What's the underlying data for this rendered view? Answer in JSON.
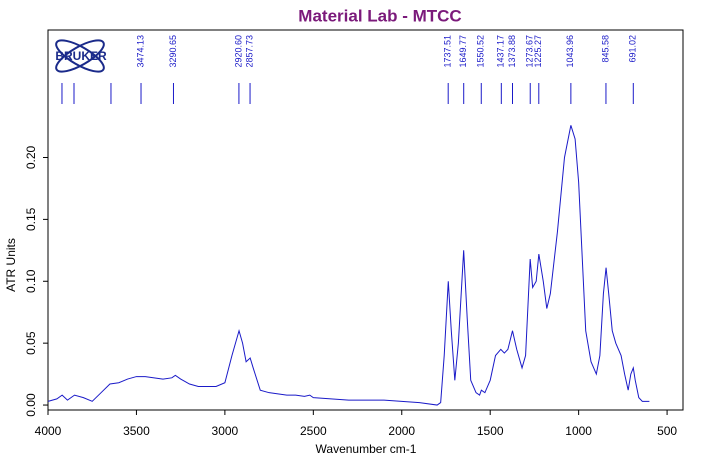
{
  "chart_data": {
    "type": "line",
    "title": "Material Lab - MTCC",
    "x_label": "Wavenumber cm-1",
    "y_label": "ATR Units",
    "logo": "BRUKER",
    "x": [
      4000,
      3950,
      3920,
      3890,
      3850,
      3800,
      3750,
      3700,
      3650,
      3600,
      3550,
      3500,
      3450,
      3400,
      3350,
      3300,
      3280,
      3250,
      3200,
      3150,
      3100,
      3050,
      3000,
      2960,
      2920,
      2900,
      2880,
      2857,
      2840,
      2800,
      2750,
      2700,
      2650,
      2600,
      2550,
      2520,
      2500,
      2400,
      2300,
      2200,
      2100,
      2000,
      1900,
      1800,
      1780,
      1760,
      1737,
      1720,
      1700,
      1680,
      1650,
      1630,
      1610,
      1580,
      1560,
      1550,
      1530,
      1500,
      1470,
      1440,
      1420,
      1400,
      1374,
      1350,
      1320,
      1300,
      1274,
      1260,
      1240,
      1225,
      1200,
      1180,
      1160,
      1120,
      1080,
      1044,
      1020,
      1000,
      980,
      960,
      930,
      900,
      880,
      860,
      845,
      830,
      810,
      790,
      760,
      740,
      720,
      705,
      691,
      680,
      660,
      640,
      600
    ],
    "series": [
      {
        "name": "spectrum",
        "color": "#1a1ac8",
        "values": [
          0.003,
          0.005,
          0.008,
          0.004,
          0.008,
          0.006,
          0.003,
          0.01,
          0.017,
          0.018,
          0.021,
          0.023,
          0.023,
          0.022,
          0.021,
          0.022,
          0.024,
          0.021,
          0.017,
          0.015,
          0.015,
          0.015,
          0.018,
          0.04,
          0.06,
          0.05,
          0.035,
          0.038,
          0.03,
          0.012,
          0.01,
          0.009,
          0.008,
          0.008,
          0.007,
          0.008,
          0.006,
          0.005,
          0.004,
          0.004,
          0.004,
          0.003,
          0.002,
          0.0,
          0.002,
          0.04,
          0.1,
          0.06,
          0.02,
          0.05,
          0.125,
          0.07,
          0.02,
          0.01,
          0.008,
          0.012,
          0.01,
          0.02,
          0.04,
          0.045,
          0.042,
          0.045,
          0.06,
          0.045,
          0.03,
          0.04,
          0.118,
          0.095,
          0.1,
          0.122,
          0.1,
          0.078,
          0.09,
          0.14,
          0.2,
          0.226,
          0.215,
          0.18,
          0.12,
          0.06,
          0.035,
          0.025,
          0.04,
          0.09,
          0.111,
          0.09,
          0.06,
          0.05,
          0.04,
          0.025,
          0.012,
          0.025,
          0.03,
          0.02,
          0.006,
          0.003,
          0.003
        ]
      }
    ],
    "peaks": [
      3921,
      3853,
      3644,
      3474.13,
      3290.65,
      2920.6,
      2857.73,
      1737.51,
      1649.77,
      1550.52,
      1437.17,
      1373.88,
      1273.67,
      1225.27,
      1043.96,
      845.58,
      691.02
    ],
    "peak_labels": [
      null,
      null,
      null,
      "3474.13",
      "3290.65",
      "2920.60",
      "2857.73",
      "1737.51",
      "1649.77",
      "1550.52",
      "1437.17",
      "1373.88",
      "1273.67",
      "1225.27",
      "1043.96",
      "845.58",
      "691.02"
    ],
    "peak_color": "#1a1ac8",
    "title_color": "#7b1a7b",
    "xlim": [
      4000,
      410
    ],
    "xticks": [
      4000,
      3500,
      3000,
      2500,
      2000,
      1500,
      1000,
      500
    ],
    "ylim": [
      -0.004,
      0.303
    ],
    "yticks": [
      {
        "value": 0,
        "label": "0.00"
      },
      0.05,
      {
        "value": 0.1,
        "label": "0.10"
      },
      0.15,
      {
        "value": 0.2,
        "label": "0.20"
      }
    ]
  }
}
